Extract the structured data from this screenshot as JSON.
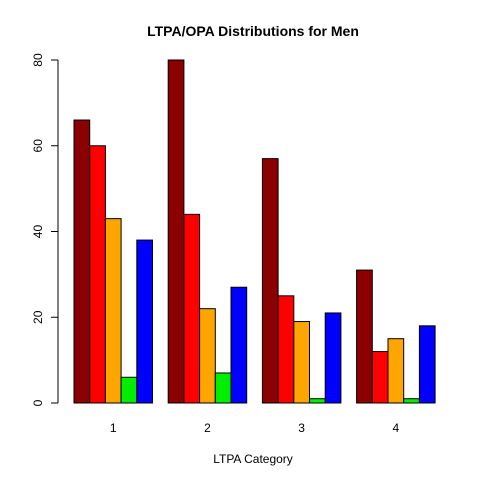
{
  "chart_data": {
    "type": "bar",
    "title": "LTPA/OPA Distributions for Men",
    "xlabel": "LTPA Category",
    "ylabel": "",
    "categories": [
      "1",
      "2",
      "3",
      "4"
    ],
    "ylim": [
      0,
      80
    ],
    "yticks": [
      0,
      20,
      40,
      60,
      80
    ],
    "grid": false,
    "legend": "none",
    "series": [
      {
        "color": "#8B0000",
        "values": [
          66,
          80,
          57,
          31
        ]
      },
      {
        "color": "#FF0000",
        "values": [
          60,
          44,
          25,
          12
        ]
      },
      {
        "color": "#FFA500",
        "values": [
          43,
          22,
          19,
          15
        ]
      },
      {
        "color": "#00EE00",
        "values": [
          6,
          7,
          1,
          1
        ]
      },
      {
        "color": "#0000FF",
        "values": [
          38,
          27,
          21,
          18
        ]
      }
    ]
  }
}
